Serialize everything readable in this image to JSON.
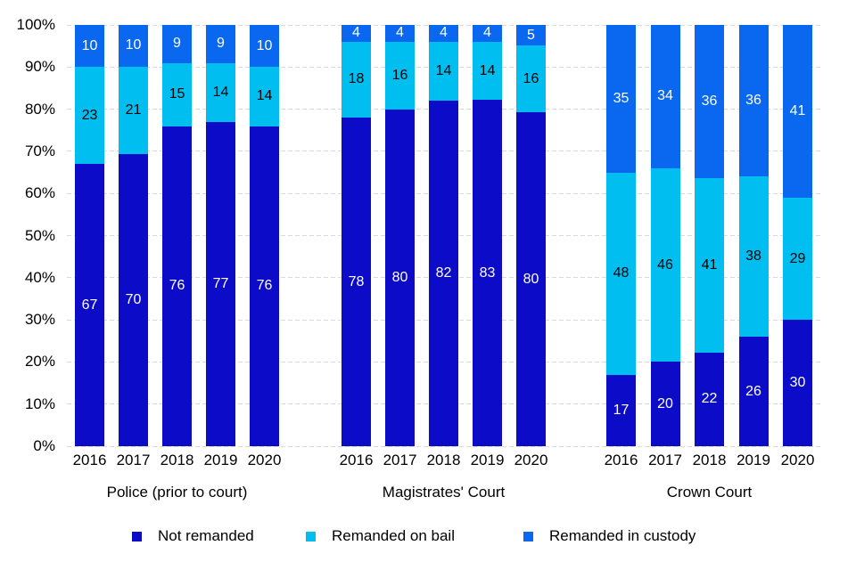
{
  "chart_data": {
    "type": "bar",
    "stacked": true,
    "percent_axis": true,
    "title": "",
    "xlabel": "",
    "ylabel": "",
    "ylim": [
      0,
      100
    ],
    "ytick_step": 10,
    "yticks": [
      "0%",
      "10%",
      "20%",
      "30%",
      "40%",
      "50%",
      "60%",
      "70%",
      "80%",
      "90%",
      "100%"
    ],
    "grid": true,
    "legend_position": "bottom",
    "series": [
      {
        "id": "not_remanded",
        "name": "Not remanded",
        "color": "#0C0CC8",
        "label_color": "#FFFFFF"
      },
      {
        "id": "bail",
        "name": "Remanded on bail",
        "color": "#00BFF0",
        "label_color": "#000000"
      },
      {
        "id": "custody",
        "name": "Remanded in custody",
        "color": "#0A68F0",
        "label_color": "#FFFFFF"
      }
    ],
    "groups": [
      {
        "label": "Police (prior to court)",
        "categories": [
          "2016",
          "2017",
          "2018",
          "2019",
          "2020"
        ],
        "values": {
          "not_remanded": [
            67,
            70,
            76,
            77,
            76
          ],
          "bail": [
            23,
            21,
            15,
            14,
            14
          ],
          "custody": [
            10,
            10,
            9,
            9,
            10
          ]
        }
      },
      {
        "label": "Magistrates' Court",
        "categories": [
          "2016",
          "2017",
          "2018",
          "2019",
          "2020"
        ],
        "values": {
          "not_remanded": [
            78,
            80,
            82,
            83,
            80
          ],
          "bail": [
            18,
            16,
            14,
            14,
            16
          ],
          "custody": [
            4,
            4,
            4,
            4,
            5
          ]
        }
      },
      {
        "label": "Crown Court",
        "categories": [
          "2016",
          "2017",
          "2018",
          "2019",
          "2020"
        ],
        "values": {
          "not_remanded": [
            17,
            20,
            22,
            26,
            30
          ],
          "bail": [
            48,
            46,
            41,
            38,
            29
          ],
          "custody": [
            35,
            34,
            36,
            36,
            41
          ]
        }
      }
    ],
    "colors": {
      "gridline": "#D9D9D9",
      "axis_text": "#000000"
    }
  }
}
